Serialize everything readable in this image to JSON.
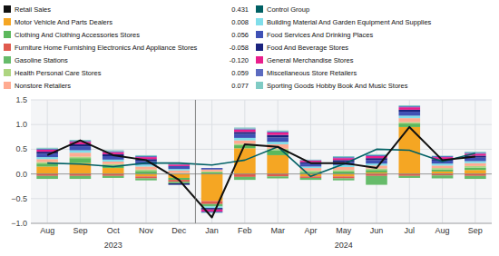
{
  "chart_data": {
    "type": "bar",
    "stacked": true,
    "grid": true,
    "categories": [
      "Aug",
      "Sep",
      "Oct",
      "Nov",
      "Dec",
      "Jan",
      "Feb",
      "Mar",
      "Apr",
      "May",
      "Jun",
      "Jul",
      "Aug",
      "Sep"
    ],
    "annotations": [
      "2023",
      "2024"
    ],
    "ylim": [
      -1.0,
      1.5
    ],
    "yticks": [
      {
        "value": -1.0,
        "label": "−1.0"
      },
      {
        "value": -0.5,
        "label": "−0.5"
      },
      {
        "value": 0.0,
        "label": "0.0"
      },
      0.5,
      {
        "value": 1.0,
        "label": "1.0"
      },
      {
        "value": 1.5,
        "label": "1.5"
      }
    ],
    "series": [
      {
        "name": "Retail Sales",
        "type": "line",
        "color": "#111111",
        "legend_value": "0.431",
        "values": [
          0.38,
          0.68,
          0.38,
          0.28,
          -0.12,
          -0.88,
          0.6,
          0.55,
          0.22,
          0.22,
          0.12,
          0.95,
          0.28,
          0.35
        ]
      },
      {
        "name": "Motor Vehicle And Parts Dealers",
        "type": "bar",
        "color": "#f5a623",
        "legend_value": "0.008",
        "values": [
          0.15,
          0.22,
          0.12,
          -0.05,
          -0.08,
          -0.55,
          0.52,
          0.38,
          -0.05,
          -0.05,
          0.03,
          0.95,
          0.05,
          0.08
        ]
      },
      {
        "name": "Clothing And Clothing Accessories Stores",
        "type": "bar",
        "color": "#5cb85c",
        "legend_value": "0.056",
        "values": [
          0.06,
          0.1,
          0.05,
          0.06,
          -0.04,
          0.03,
          0.06,
          0.1,
          0.04,
          0.05,
          0.05,
          0.07,
          0.04,
          0.05
        ]
      },
      {
        "name": "Furniture Home Furnishing Electronics And Appliance Stores",
        "type": "bar",
        "color": "#e05a4e",
        "legend_value": "-0.058",
        "values": [
          -0.04,
          -0.04,
          -0.04,
          -0.04,
          -0.04,
          -0.06,
          -0.06,
          -0.05,
          -0.03,
          -0.04,
          -0.04,
          -0.04,
          -0.03,
          -0.04
        ]
      },
      {
        "name": "Gasoline Stations",
        "type": "bar",
        "color": "#66bb6a",
        "legend_value": "-0.120",
        "values": [
          -0.06,
          -0.06,
          -0.04,
          -0.04,
          -0.03,
          -0.05,
          -0.06,
          -0.04,
          -0.04,
          -0.04,
          -0.18,
          -0.04,
          -0.06,
          -0.06
        ]
      },
      {
        "name": "Health Personal Care Stores",
        "type": "bar",
        "color": "#aed581",
        "legend_value": "0.059",
        "values": [
          0.03,
          0.03,
          0.03,
          0.03,
          0.02,
          0.02,
          0.03,
          0.03,
          0.03,
          0.03,
          0.03,
          0.03,
          0.03,
          0.03
        ]
      },
      {
        "name": "Nonstore Retailers",
        "type": "bar",
        "color": "#ffab91",
        "legend_value": "0.077",
        "values": [
          0.06,
          0.08,
          0.05,
          0.06,
          0.05,
          0.04,
          0.07,
          0.09,
          0.05,
          0.06,
          0.06,
          0.08,
          0.05,
          0.06
        ]
      },
      {
        "name": "Control Group",
        "type": "line",
        "color": "#006064",
        "values": [
          0.22,
          0.2,
          0.15,
          0.22,
          0.22,
          0.18,
          0.28,
          0.55,
          -0.05,
          0.2,
          0.5,
          0.48,
          0.25,
          0.42
        ]
      },
      {
        "name": "Building Material And Garden Equipment And Supplies",
        "type": "bar",
        "color": "#80deea",
        "values": [
          0.04,
          0.05,
          0.04,
          0.04,
          0.03,
          -0.03,
          0.05,
          0.05,
          0.03,
          0.04,
          0.04,
          0.05,
          0.04,
          0.04
        ]
      },
      {
        "name": "Food Services And Drinking Places",
        "type": "bar",
        "color": "#3f51b5",
        "values": [
          0.07,
          0.08,
          0.07,
          0.07,
          0.06,
          0.03,
          0.08,
          0.09,
          0.06,
          0.06,
          0.07,
          0.08,
          0.06,
          0.07
        ]
      },
      {
        "name": "Food And Beverage Stores",
        "type": "bar",
        "color": "#1a237e",
        "values": [
          0.04,
          0.04,
          0.04,
          0.04,
          -0.03,
          -0.03,
          0.04,
          0.05,
          0.03,
          0.04,
          0.04,
          0.04,
          0.03,
          0.04
        ]
      },
      {
        "name": "General Merchandise Stores",
        "type": "bar",
        "color": "#e91e8c",
        "values": [
          0.04,
          0.05,
          0.04,
          0.04,
          0.03,
          -0.04,
          0.05,
          0.05,
          0.03,
          0.04,
          0.04,
          0.05,
          0.04,
          0.04
        ]
      },
      {
        "name": "Miscellaneous Store Retailers",
        "type": "bar",
        "color": "#5c6bc0",
        "values": [
          0.02,
          0.02,
          0.02,
          0.02,
          0.01,
          -0.02,
          0.02,
          0.02,
          0.01,
          0.02,
          0.02,
          0.02,
          0.02,
          0.02
        ]
      },
      {
        "name": "Sporting Goods Hobby Book And Music Stores",
        "type": "bar",
        "color": "#80cbc4",
        "values": [
          0.02,
          0.02,
          0.02,
          0.02,
          0.01,
          -0.01,
          0.02,
          0.02,
          0.01,
          0.02,
          0.02,
          0.02,
          0.01,
          0.02
        ]
      }
    ]
  }
}
